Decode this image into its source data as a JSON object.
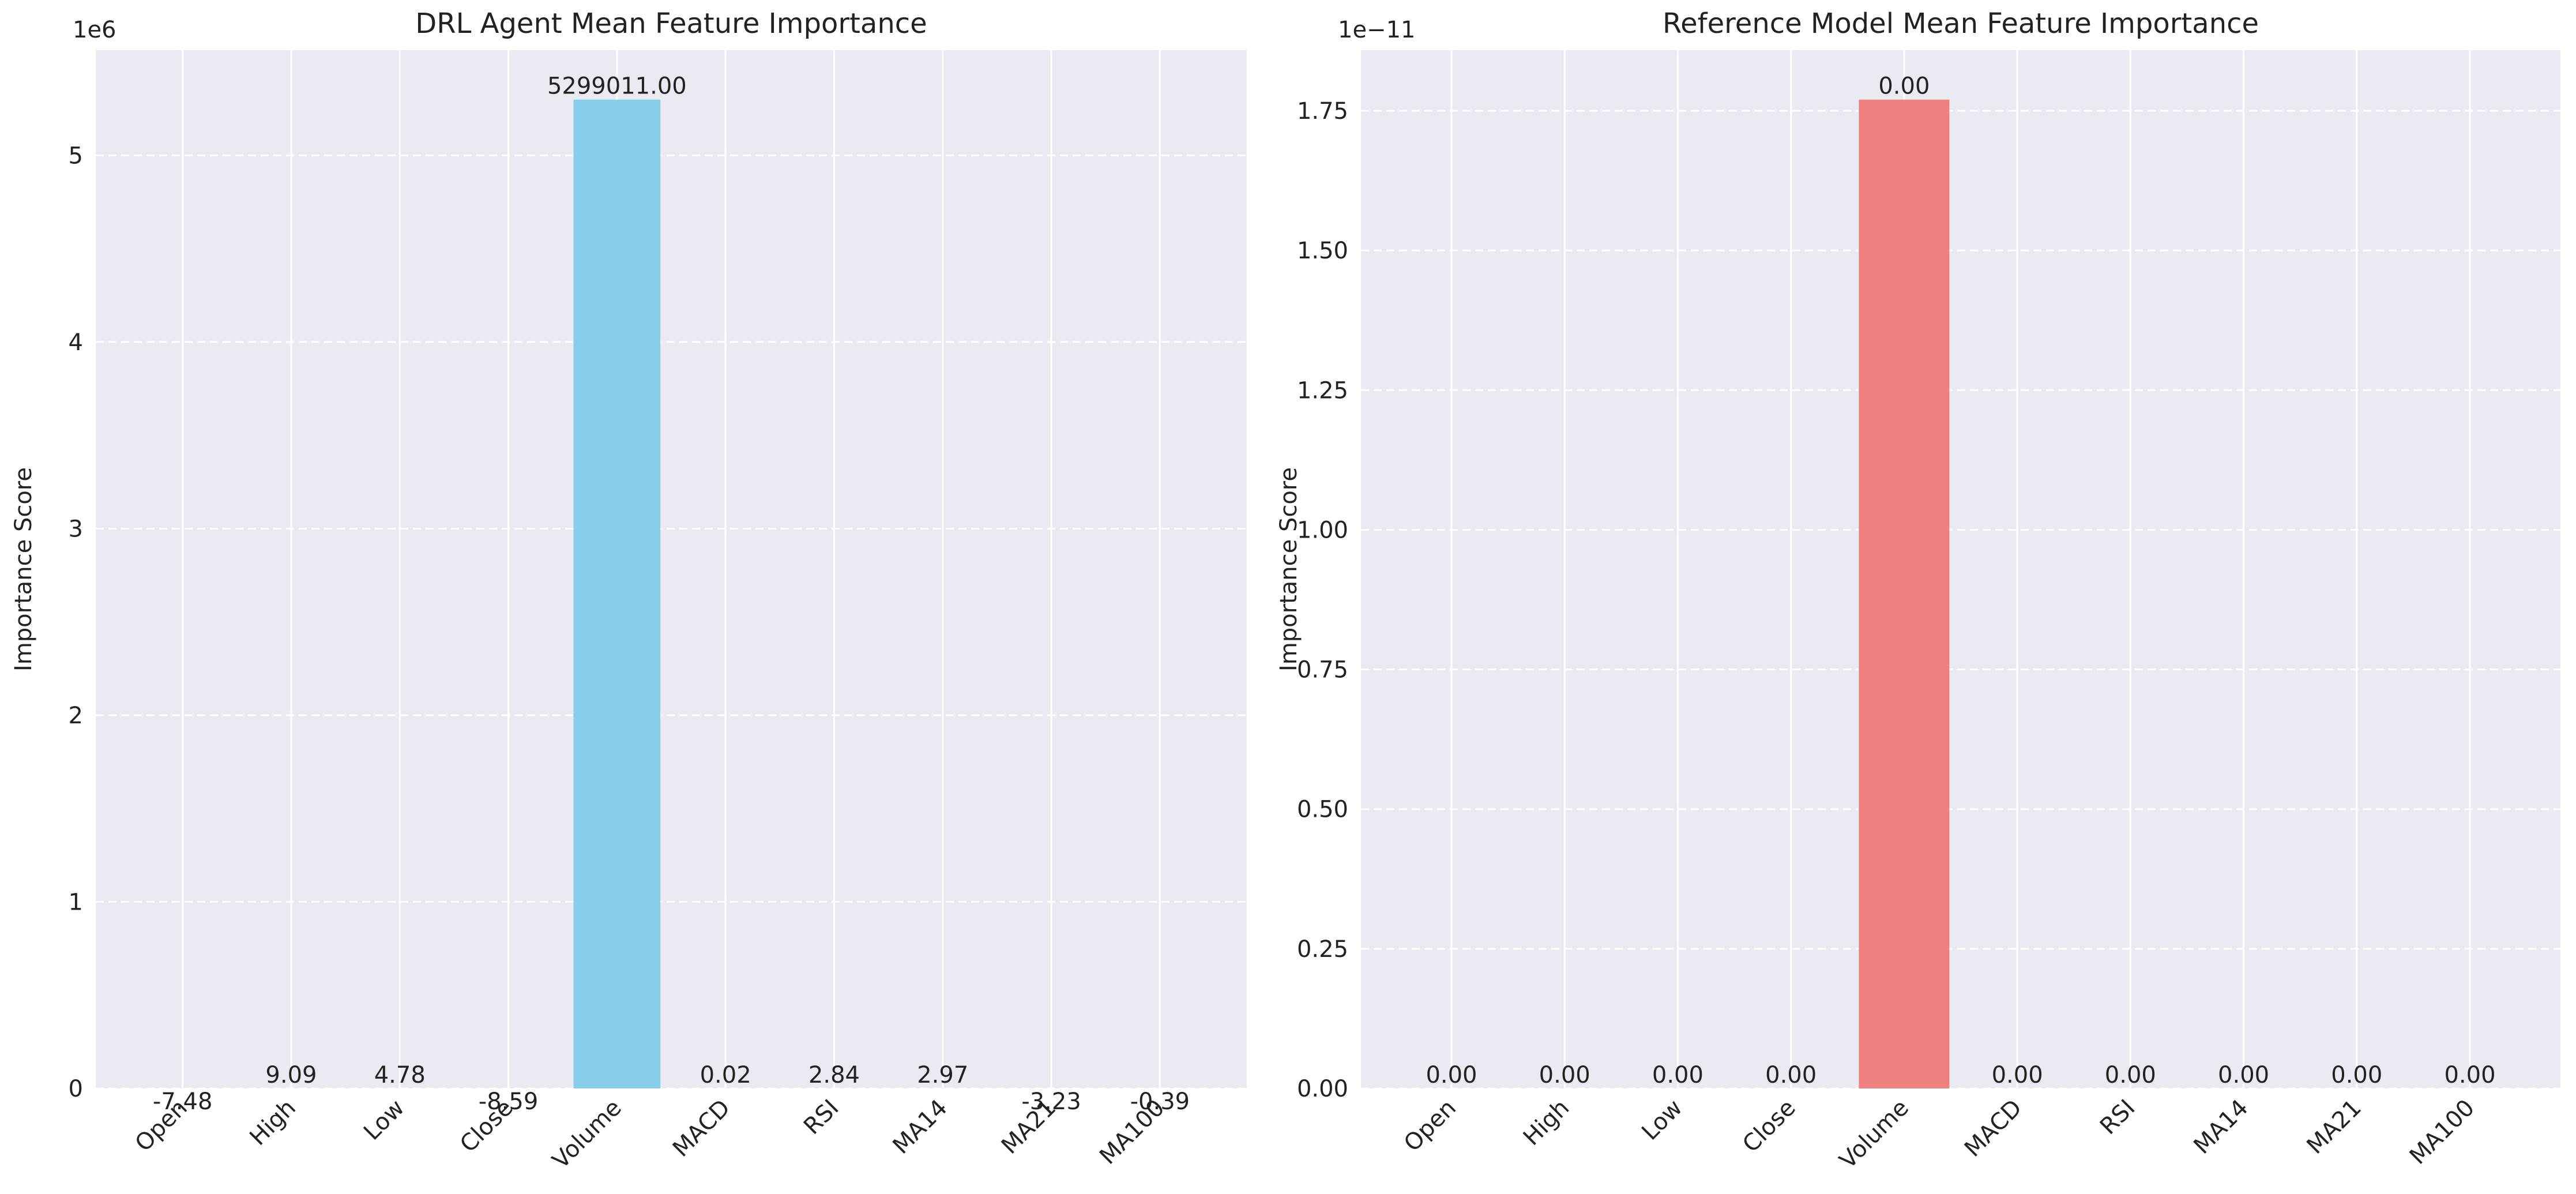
{
  "chart_data": [
    {
      "type": "bar",
      "title": "DRL Agent Mean Feature Importance",
      "xlabel": "",
      "ylabel": "Importance Score",
      "categories": [
        "Open",
        "High",
        "Low",
        "Close",
        "Volume",
        "MACD",
        "RSI",
        "MA14",
        "MA21",
        "MA100"
      ],
      "values": [
        -7.48,
        9.09,
        4.78,
        -8.59,
        5299011.0,
        0.02,
        2.84,
        2.97,
        -3.23,
        -0.39
      ],
      "value_labels": [
        "-7.48",
        "9.09",
        "4.78",
        "-8.59",
        "5299011.00",
        "0.02",
        "2.84",
        "2.97",
        "-3.23",
        "-0.39"
      ],
      "ylim": [
        0,
        5563961.55
      ],
      "yticks": [
        0,
        1000000,
        2000000,
        3000000,
        4000000,
        5000000
      ],
      "ytick_labels": [
        "0",
        "1",
        "2",
        "3",
        "4",
        "5"
      ],
      "y_offset_label": "1e6",
      "color": "#87CEEB",
      "grid": true,
      "background": "#EAEAF2"
    },
    {
      "type": "bar",
      "title": "Reference Model Mean Feature Importance",
      "xlabel": "",
      "ylabel": "Importance Score",
      "categories": [
        "Open",
        "High",
        "Low",
        "Close",
        "Volume",
        "MACD",
        "RSI",
        "MA14",
        "MA21",
        "MA100"
      ],
      "values": [
        0,
        0,
        0,
        0,
        1.77e-11,
        0,
        0,
        0,
        0,
        0
      ],
      "value_labels": [
        "0.00",
        "0.00",
        "0.00",
        "0.00",
        "0.00",
        "0.00",
        "0.00",
        "0.00",
        "0.00",
        "0.00"
      ],
      "ylim": [
        0,
        1.8585e-11
      ],
      "yticks": [
        0,
        2.5e-12,
        5e-12,
        7.5e-12,
        1e-11,
        1.25e-11,
        1.5e-11,
        1.75e-11
      ],
      "ytick_labels": [
        "0.00",
        "0.25",
        "0.50",
        "0.75",
        "1.00",
        "1.25",
        "1.50",
        "1.75"
      ],
      "y_offset_label": "1e−11",
      "color": "#F08080",
      "grid": true,
      "background": "#EAEAF2"
    }
  ]
}
